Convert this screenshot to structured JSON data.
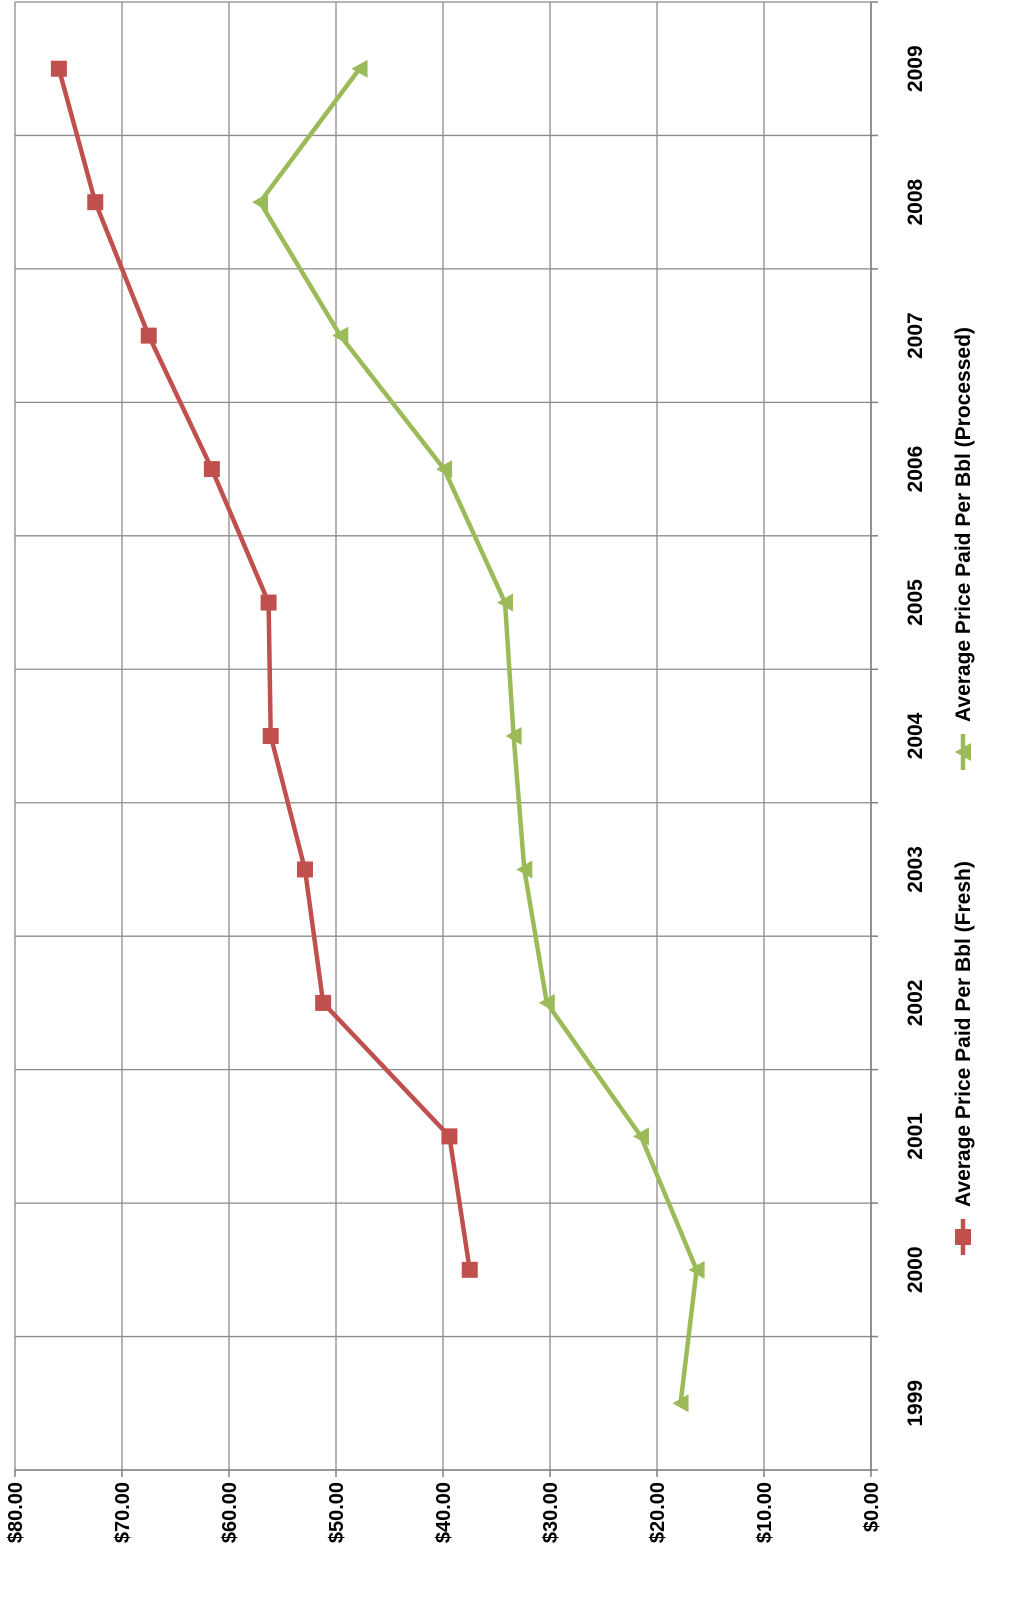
{
  "chart_data": {
    "type": "line",
    "title": "",
    "xlabel": "",
    "ylabel": "",
    "categories": [
      "1999",
      "2000",
      "2001",
      "2002",
      "2003",
      "2004",
      "2005",
      "2006",
      "2007",
      "2008",
      "2009"
    ],
    "y_ticks": [
      "$0.00",
      "$10.00",
      "$20.00",
      "$30.00",
      "$40.00",
      "$50.00",
      "$60.00",
      "$70.00",
      "$80.00"
    ],
    "ylim": [
      0,
      80
    ],
    "grid": true,
    "legend_position": "right",
    "orientation": "rotated 90 degrees clockwise",
    "series": [
      {
        "name": "Average Price Paid Per Bbl (Fresh)",
        "color": "#c0504d",
        "marker": "square",
        "values": [
          null,
          37.5,
          39.4,
          51.2,
          52.9,
          56.1,
          56.3,
          61.6,
          67.5,
          72.5,
          75.9
        ]
      },
      {
        "name": "Average Price Paid Per Bbl (Processed)",
        "color": "#9bbb59",
        "marker": "triangle",
        "values": [
          17.8,
          16.3,
          21.5,
          30.3,
          32.4,
          33.4,
          34.2,
          39.9,
          49.6,
          57.1,
          47.8
        ]
      }
    ]
  }
}
